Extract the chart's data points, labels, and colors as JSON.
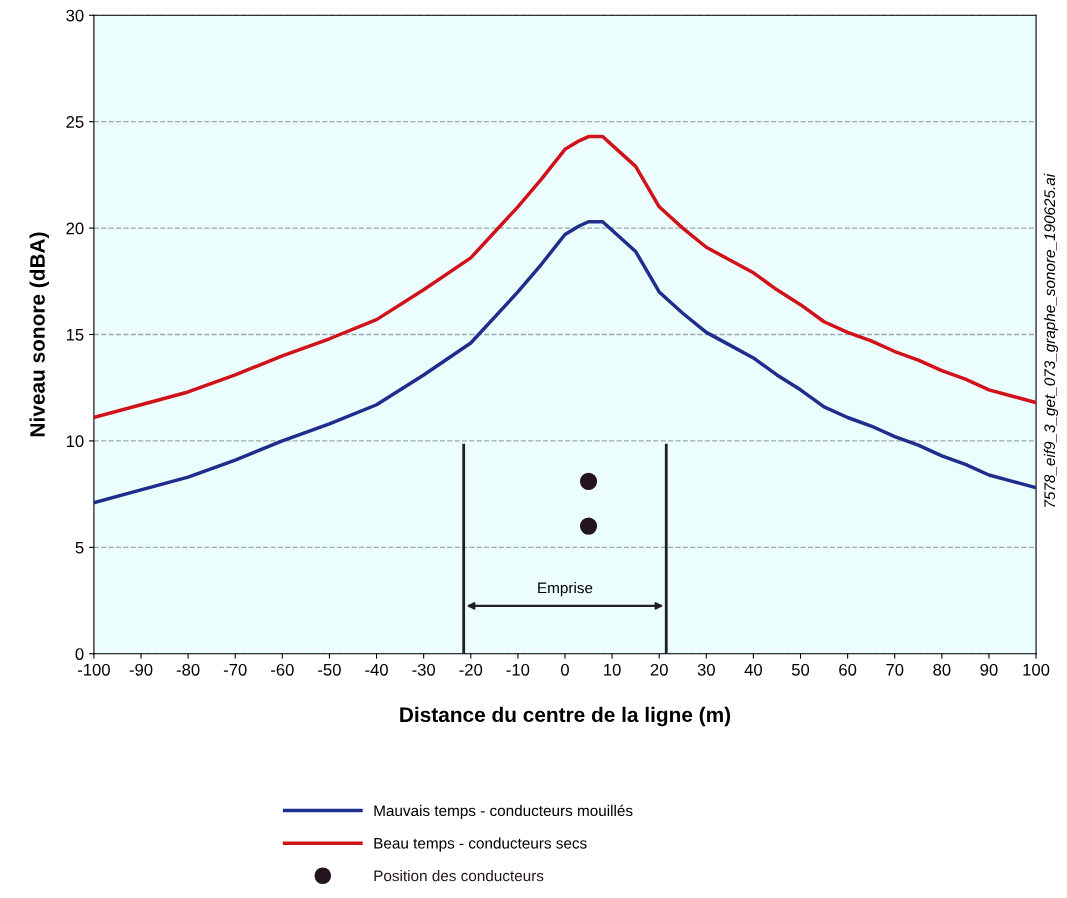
{
  "chart_data": {
    "type": "line",
    "xlabel": "Distance du centre de la ligne (m)",
    "ylabel": "Niveau sonore (dBA)",
    "xlim": [
      -100,
      100
    ],
    "xticks": [
      -100,
      -90,
      -80,
      -70,
      -60,
      -50,
      -40,
      -30,
      -20,
      -10,
      0,
      10,
      20,
      30,
      40,
      50,
      60,
      70,
      80,
      90,
      100
    ],
    "ylim": [
      0,
      30
    ],
    "yticks": [
      0,
      5,
      10,
      15,
      20,
      25,
      30
    ],
    "grid": "y",
    "legend": "bottom",
    "marker": "none",
    "line_style": "solid",
    "series": [
      {
        "name": "Mauvais temps - conducteurs mouillés",
        "color": "#1f2e8c",
        "x": [
          -100,
          -90,
          -80,
          -70,
          -60,
          -50,
          -40,
          -30,
          -20,
          -10,
          -5,
          0,
          3,
          5,
          8,
          10,
          15,
          20,
          25,
          30,
          35,
          40,
          45,
          50,
          55,
          60,
          65,
          70,
          75,
          80,
          85,
          90,
          95,
          100
        ],
        "values": [
          7.1,
          7.7,
          8.3,
          9.1,
          10.0,
          10.8,
          11.7,
          13.1,
          14.6,
          17.0,
          18.3,
          19.7,
          20.1,
          20.3,
          20.3,
          19.9,
          18.9,
          17.0,
          16.0,
          15.1,
          14.5,
          13.9,
          13.1,
          12.4,
          11.6,
          11.1,
          10.7,
          10.2,
          9.8,
          9.3,
          8.9,
          8.4,
          8.1,
          7.8
        ]
      },
      {
        "name": "Beau temps - conducteurs secs",
        "color": "#d0121b",
        "x": [
          -100,
          -90,
          -80,
          -70,
          -60,
          -50,
          -40,
          -30,
          -20,
          -10,
          -5,
          0,
          3,
          5,
          8,
          10,
          15,
          20,
          25,
          30,
          35,
          40,
          45,
          50,
          55,
          60,
          65,
          70,
          75,
          80,
          85,
          90,
          95,
          100
        ],
        "values": [
          11.1,
          11.7,
          12.3,
          13.1,
          14.0,
          14.8,
          15.7,
          17.1,
          18.6,
          21.0,
          22.3,
          23.7,
          24.1,
          24.3,
          24.3,
          23.9,
          22.9,
          21.0,
          20.0,
          19.1,
          18.5,
          17.9,
          17.1,
          16.4,
          15.6,
          15.1,
          14.7,
          14.2,
          13.8,
          13.3,
          12.9,
          12.4,
          12.1,
          11.8
        ]
      },
      {
        "name": "Position des conducteurs",
        "type": "scatter",
        "marker": "circle",
        "color": "#231520",
        "x": [
          5,
          5
        ],
        "values": [
          8.1,
          6.0
        ]
      },
      {
        "type": "line",
        "color": "#231f20",
        "x": [
          -21.5,
          -21.5
        ],
        "values": [
          0,
          9.8
        ]
      },
      {
        "type": "line",
        "color": "#231f20",
        "x": [
          21.5,
          21.5
        ],
        "values": [
          0,
          9.8
        ]
      }
    ],
    "annotations": [
      "Emprise",
      "7578_eif9_3_get_073_graphe_sonore_190625.ai"
    ]
  }
}
